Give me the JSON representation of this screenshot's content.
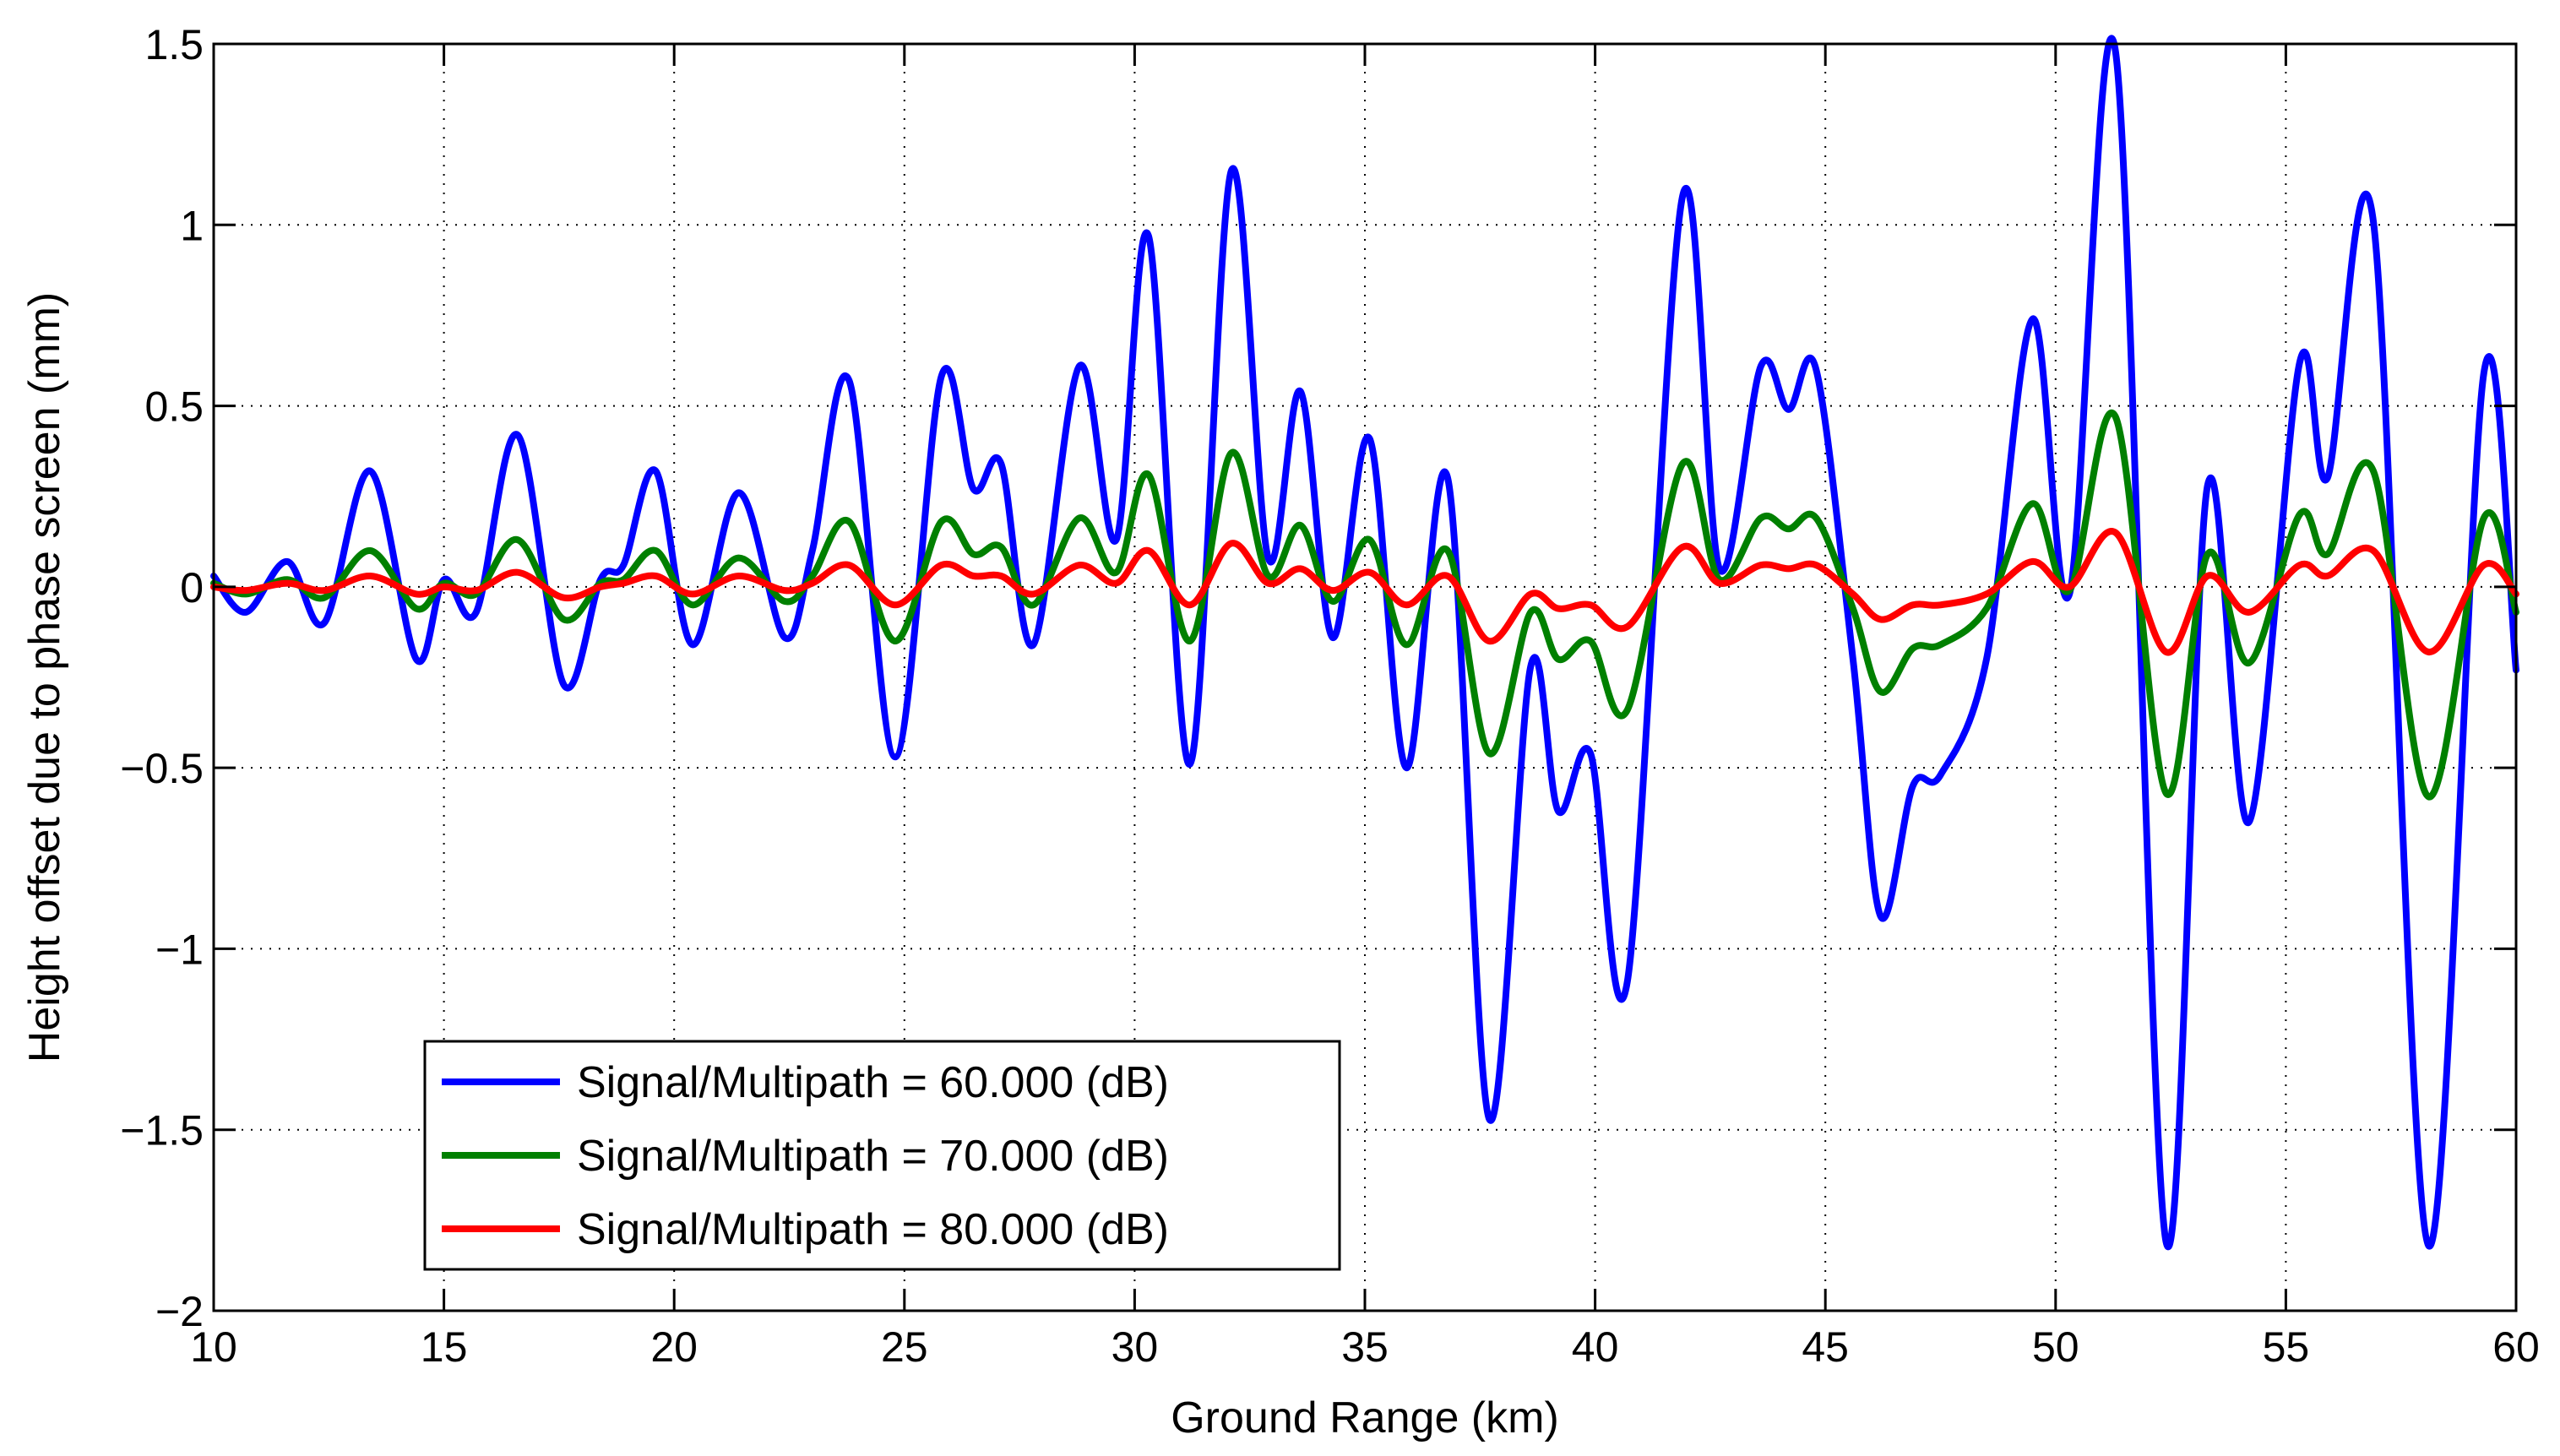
{
  "chart_data": {
    "type": "line",
    "title": "",
    "xlabel": "Ground Range (km)",
    "ylabel": "Height offset due to phase screen (mm)",
    "xlim": [
      10,
      60
    ],
    "ylim": [
      -2,
      1.5
    ],
    "xticks": [
      10,
      15,
      20,
      25,
      30,
      35,
      40,
      45,
      50,
      55,
      60
    ],
    "yticks": [
      -2,
      -1.5,
      -1,
      -0.5,
      0,
      0.5,
      1,
      1.5
    ],
    "xtick_labels": [
      "10",
      "15",
      "20",
      "25",
      "30",
      "35",
      "40",
      "45",
      "50",
      "55",
      "60"
    ],
    "ytick_labels": [
      "−2",
      "−1.5",
      "−1",
      "−0.5",
      "0",
      "0.5",
      "1",
      "1.5"
    ],
    "grid": true,
    "legend_position": "bottom-left",
    "series": [
      {
        "name": "Signal/Multipath = 60.000 (dB)",
        "color": "#0000ff",
        "points": [
          [
            10,
            0.03
          ],
          [
            10.7,
            -0.07
          ],
          [
            11.6,
            0.07
          ],
          [
            12.4,
            -0.1
          ],
          [
            13.4,
            0.32
          ],
          [
            14.4,
            -0.2
          ],
          [
            15.0,
            0.02
          ],
          [
            15.7,
            -0.07
          ],
          [
            16.6,
            0.42
          ],
          [
            17.6,
            -0.27
          ],
          [
            18.4,
            0.02
          ],
          [
            18.9,
            0.06
          ],
          [
            19.6,
            0.32
          ],
          [
            20.4,
            -0.16
          ],
          [
            21.4,
            0.26
          ],
          [
            22.4,
            -0.14
          ],
          [
            23.0,
            0.1
          ],
          [
            23.8,
            0.57
          ],
          [
            24.8,
            -0.47
          ],
          [
            25.8,
            0.58
          ],
          [
            26.5,
            0.27
          ],
          [
            27.1,
            0.34
          ],
          [
            27.8,
            -0.16
          ],
          [
            28.8,
            0.61
          ],
          [
            29.6,
            0.13
          ],
          [
            30.3,
            0.97
          ],
          [
            31.2,
            -0.49
          ],
          [
            32.1,
            1.15
          ],
          [
            32.9,
            0.08
          ],
          [
            33.6,
            0.54
          ],
          [
            34.3,
            -0.14
          ],
          [
            35.1,
            0.41
          ],
          [
            35.9,
            -0.5
          ],
          [
            36.8,
            0.3
          ],
          [
            37.7,
            -1.47
          ],
          [
            38.6,
            -0.22
          ],
          [
            39.2,
            -0.62
          ],
          [
            39.9,
            -0.46
          ],
          [
            40.7,
            -1.09
          ],
          [
            41.9,
            1.08
          ],
          [
            42.7,
            0.05
          ],
          [
            43.6,
            0.61
          ],
          [
            44.2,
            0.49
          ],
          [
            44.8,
            0.6
          ],
          [
            45.6,
            -0.2
          ],
          [
            46.2,
            -0.91
          ],
          [
            46.9,
            -0.55
          ],
          [
            47.5,
            -0.52
          ],
          [
            48.5,
            -0.2
          ],
          [
            49.5,
            0.74
          ],
          [
            50.3,
            -0.02
          ],
          [
            51.3,
            1.48
          ],
          [
            52.4,
            -1.81
          ],
          [
            53.3,
            0.28
          ],
          [
            54.2,
            -0.65
          ],
          [
            55.3,
            0.62
          ],
          [
            55.9,
            0.3
          ],
          [
            56.9,
            1.01
          ],
          [
            58.1,
            -1.82
          ],
          [
            59.3,
            0.59
          ],
          [
            60.0,
            -0.23
          ]
        ]
      },
      {
        "name": "Signal/Multipath = 70.000 (dB)",
        "color": "#008000",
        "points": [
          [
            10,
            0.01
          ],
          [
            10.7,
            -0.02
          ],
          [
            11.6,
            0.02
          ],
          [
            12.4,
            -0.03
          ],
          [
            13.4,
            0.1
          ],
          [
            14.4,
            -0.06
          ],
          [
            15.0,
            0.01
          ],
          [
            15.7,
            -0.02
          ],
          [
            16.6,
            0.13
          ],
          [
            17.6,
            -0.09
          ],
          [
            18.4,
            0.01
          ],
          [
            18.9,
            0.02
          ],
          [
            19.6,
            0.1
          ],
          [
            20.4,
            -0.05
          ],
          [
            21.4,
            0.08
          ],
          [
            22.4,
            -0.04
          ],
          [
            23.0,
            0.03
          ],
          [
            23.8,
            0.18
          ],
          [
            24.8,
            -0.15
          ],
          [
            25.8,
            0.18
          ],
          [
            26.5,
            0.09
          ],
          [
            27.1,
            0.11
          ],
          [
            27.8,
            -0.05
          ],
          [
            28.8,
            0.19
          ],
          [
            29.6,
            0.04
          ],
          [
            30.3,
            0.31
          ],
          [
            31.2,
            -0.15
          ],
          [
            32.1,
            0.37
          ],
          [
            32.9,
            0.03
          ],
          [
            33.6,
            0.17
          ],
          [
            34.3,
            -0.04
          ],
          [
            35.1,
            0.13
          ],
          [
            35.9,
            -0.16
          ],
          [
            36.8,
            0.1
          ],
          [
            37.7,
            -0.46
          ],
          [
            38.6,
            -0.07
          ],
          [
            39.2,
            -0.2
          ],
          [
            39.9,
            -0.15
          ],
          [
            40.7,
            -0.34
          ],
          [
            41.9,
            0.34
          ],
          [
            42.7,
            0.02
          ],
          [
            43.6,
            0.19
          ],
          [
            44.2,
            0.16
          ],
          [
            44.8,
            0.19
          ],
          [
            45.6,
            -0.06
          ],
          [
            46.2,
            -0.29
          ],
          [
            46.9,
            -0.17
          ],
          [
            47.5,
            -0.16
          ],
          [
            48.5,
            -0.06
          ],
          [
            49.5,
            0.23
          ],
          [
            50.3,
            -0.01
          ],
          [
            51.3,
            0.47
          ],
          [
            52.4,
            -0.57
          ],
          [
            53.3,
            0.09
          ],
          [
            54.2,
            -0.21
          ],
          [
            55.3,
            0.2
          ],
          [
            55.9,
            0.09
          ],
          [
            56.9,
            0.32
          ],
          [
            58.1,
            -0.58
          ],
          [
            59.3,
            0.19
          ],
          [
            60.0,
            -0.07
          ]
        ]
      },
      {
        "name": "Signal/Multipath = 80.000 (dB)",
        "color": "#ff0000",
        "points": [
          [
            10,
            0.0
          ],
          [
            10.7,
            -0.01
          ],
          [
            11.6,
            0.01
          ],
          [
            12.4,
            -0.01
          ],
          [
            13.4,
            0.03
          ],
          [
            14.4,
            -0.02
          ],
          [
            15.0,
            0.0
          ],
          [
            15.7,
            -0.01
          ],
          [
            16.6,
            0.04
          ],
          [
            17.6,
            -0.03
          ],
          [
            18.4,
            0.0
          ],
          [
            18.9,
            0.01
          ],
          [
            19.6,
            0.03
          ],
          [
            20.4,
            -0.02
          ],
          [
            21.4,
            0.03
          ],
          [
            22.4,
            -0.01
          ],
          [
            23.0,
            0.01
          ],
          [
            23.8,
            0.06
          ],
          [
            24.8,
            -0.05
          ],
          [
            25.8,
            0.06
          ],
          [
            26.5,
            0.03
          ],
          [
            27.1,
            0.03
          ],
          [
            27.8,
            -0.02
          ],
          [
            28.8,
            0.06
          ],
          [
            29.6,
            0.01
          ],
          [
            30.3,
            0.1
          ],
          [
            31.2,
            -0.05
          ],
          [
            32.1,
            0.12
          ],
          [
            32.9,
            0.01
          ],
          [
            33.6,
            0.05
          ],
          [
            34.3,
            -0.01
          ],
          [
            35.1,
            0.04
          ],
          [
            35.9,
            -0.05
          ],
          [
            36.8,
            0.03
          ],
          [
            37.7,
            -0.15
          ],
          [
            38.6,
            -0.02
          ],
          [
            39.2,
            -0.06
          ],
          [
            39.9,
            -0.05
          ],
          [
            40.7,
            -0.11
          ],
          [
            41.9,
            0.11
          ],
          [
            42.7,
            0.01
          ],
          [
            43.6,
            0.06
          ],
          [
            44.2,
            0.05
          ],
          [
            44.8,
            0.06
          ],
          [
            45.6,
            -0.02
          ],
          [
            46.2,
            -0.09
          ],
          [
            46.9,
            -0.05
          ],
          [
            47.5,
            -0.05
          ],
          [
            48.5,
            -0.02
          ],
          [
            49.5,
            0.07
          ],
          [
            50.3,
            0.0
          ],
          [
            51.3,
            0.15
          ],
          [
            52.4,
            -0.18
          ],
          [
            53.3,
            0.03
          ],
          [
            54.2,
            -0.07
          ],
          [
            55.3,
            0.06
          ],
          [
            55.9,
            0.03
          ],
          [
            56.9,
            0.1
          ],
          [
            58.1,
            -0.18
          ],
          [
            59.3,
            0.06
          ],
          [
            60.0,
            -0.02
          ]
        ]
      }
    ]
  }
}
